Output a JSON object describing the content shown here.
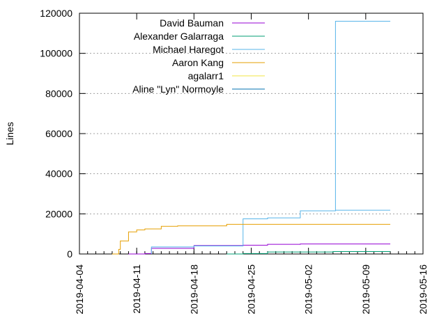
{
  "chart_data": {
    "type": "line",
    "title": "",
    "xlabel": "",
    "ylabel": "Lines",
    "ylim": [
      0,
      120000
    ],
    "xlim": [
      "2019-04-04",
      "2019-05-16"
    ],
    "yticks": [
      "0",
      "20000",
      "40000",
      "60000",
      "80000",
      "100000",
      "120000"
    ],
    "xticks": [
      "2019-04-04",
      "2019-04-11",
      "2019-04-18",
      "2019-04-25",
      "2019-05-02",
      "2019-05-09",
      "2019-05-16"
    ],
    "grid": "horizontal dotted",
    "legend": "top-left",
    "step": true,
    "series": [
      {
        "name": "David Bauman",
        "color": "#9400d3",
        "points": [
          [
            "2019-04-10",
            0
          ],
          [
            "2019-04-12",
            200
          ],
          [
            "2019-04-12.8",
            2800
          ],
          [
            "2019-04-18",
            4200
          ],
          [
            "2019-04-24",
            4400
          ],
          [
            "2019-04-27",
            4800
          ],
          [
            "2019-05-01",
            5000
          ],
          [
            "2019-05-12",
            5000
          ]
        ]
      },
      {
        "name": "Alexander Galarraga",
        "color": "#009e73",
        "points": [
          [
            "2019-04-22",
            0
          ],
          [
            "2019-04-24",
            200
          ],
          [
            "2019-04-27",
            1000
          ],
          [
            "2019-05-05",
            1200
          ],
          [
            "2019-05-12",
            1200
          ]
        ]
      },
      {
        "name": "Michael Haregot",
        "color": "#56b4e9",
        "points": [
          [
            "2019-04-12.8",
            0
          ],
          [
            "2019-04-12.8",
            3500
          ],
          [
            "2019-04-18",
            4000
          ],
          [
            "2019-04-24",
            17500
          ],
          [
            "2019-04-27",
            18000
          ],
          [
            "2019-05-01",
            21500
          ],
          [
            "2019-05-04",
            21500
          ],
          [
            "2019-05-05.3",
            116000
          ],
          [
            "2019-05-12",
            116000
          ],
          [
            "2019-05-05.3",
            21800
          ],
          [
            "2019-05-12",
            21800
          ]
        ]
      },
      {
        "name": "Aaron Kang",
        "color": "#e69f00",
        "points": [
          [
            "2019-04-08",
            0
          ],
          [
            "2019-04-08.8",
            2300
          ],
          [
            "2019-04-09",
            6500
          ],
          [
            "2019-04-10",
            11000
          ],
          [
            "2019-04-11",
            12000
          ],
          [
            "2019-04-12",
            12500
          ],
          [
            "2019-04-14",
            13800
          ],
          [
            "2019-04-16",
            14000
          ],
          [
            "2019-04-22",
            14800
          ],
          [
            "2019-05-12",
            14800
          ]
        ]
      },
      {
        "name": "agalarr1",
        "color": "#f0e442",
        "points": []
      },
      {
        "name": "Aline \"Lyn\" Normoyle",
        "color": "#0072b2",
        "points": []
      }
    ]
  }
}
